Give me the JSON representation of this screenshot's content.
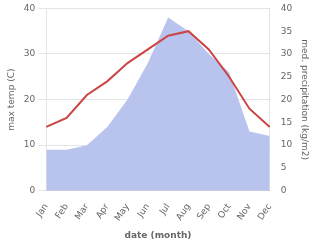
{
  "chart_data": {
    "type": "line",
    "xlabel": "date (month)",
    "ylabel": "max temp (C)",
    "y2label": "med. precipitation (kg/m2)",
    "categories": [
      "Jan",
      "Feb",
      "Mar",
      "Apr",
      "May",
      "Jun",
      "Jul",
      "Aug",
      "Sep",
      "Oct",
      "Nov",
      "Dec"
    ],
    "series": [
      {
        "type": "area",
        "axis": "y2",
        "color": "#b8c4ee",
        "values": [
          9,
          9,
          10,
          14,
          20,
          28,
          38,
          35,
          30,
          26,
          13,
          12
        ]
      },
      {
        "type": "line",
        "color": "#cc4444",
        "values": [
          14,
          16,
          21,
          24,
          28,
          31,
          34,
          35,
          31,
          25,
          18,
          14
        ]
      }
    ],
    "ylim": [
      0,
      40
    ],
    "yticks": [
      0,
      10,
      20,
      30,
      40
    ],
    "y2lim": [
      0,
      40
    ],
    "y2ticks": [
      0,
      5,
      10,
      15,
      20,
      25,
      30,
      35,
      40
    ],
    "grid": true
  }
}
